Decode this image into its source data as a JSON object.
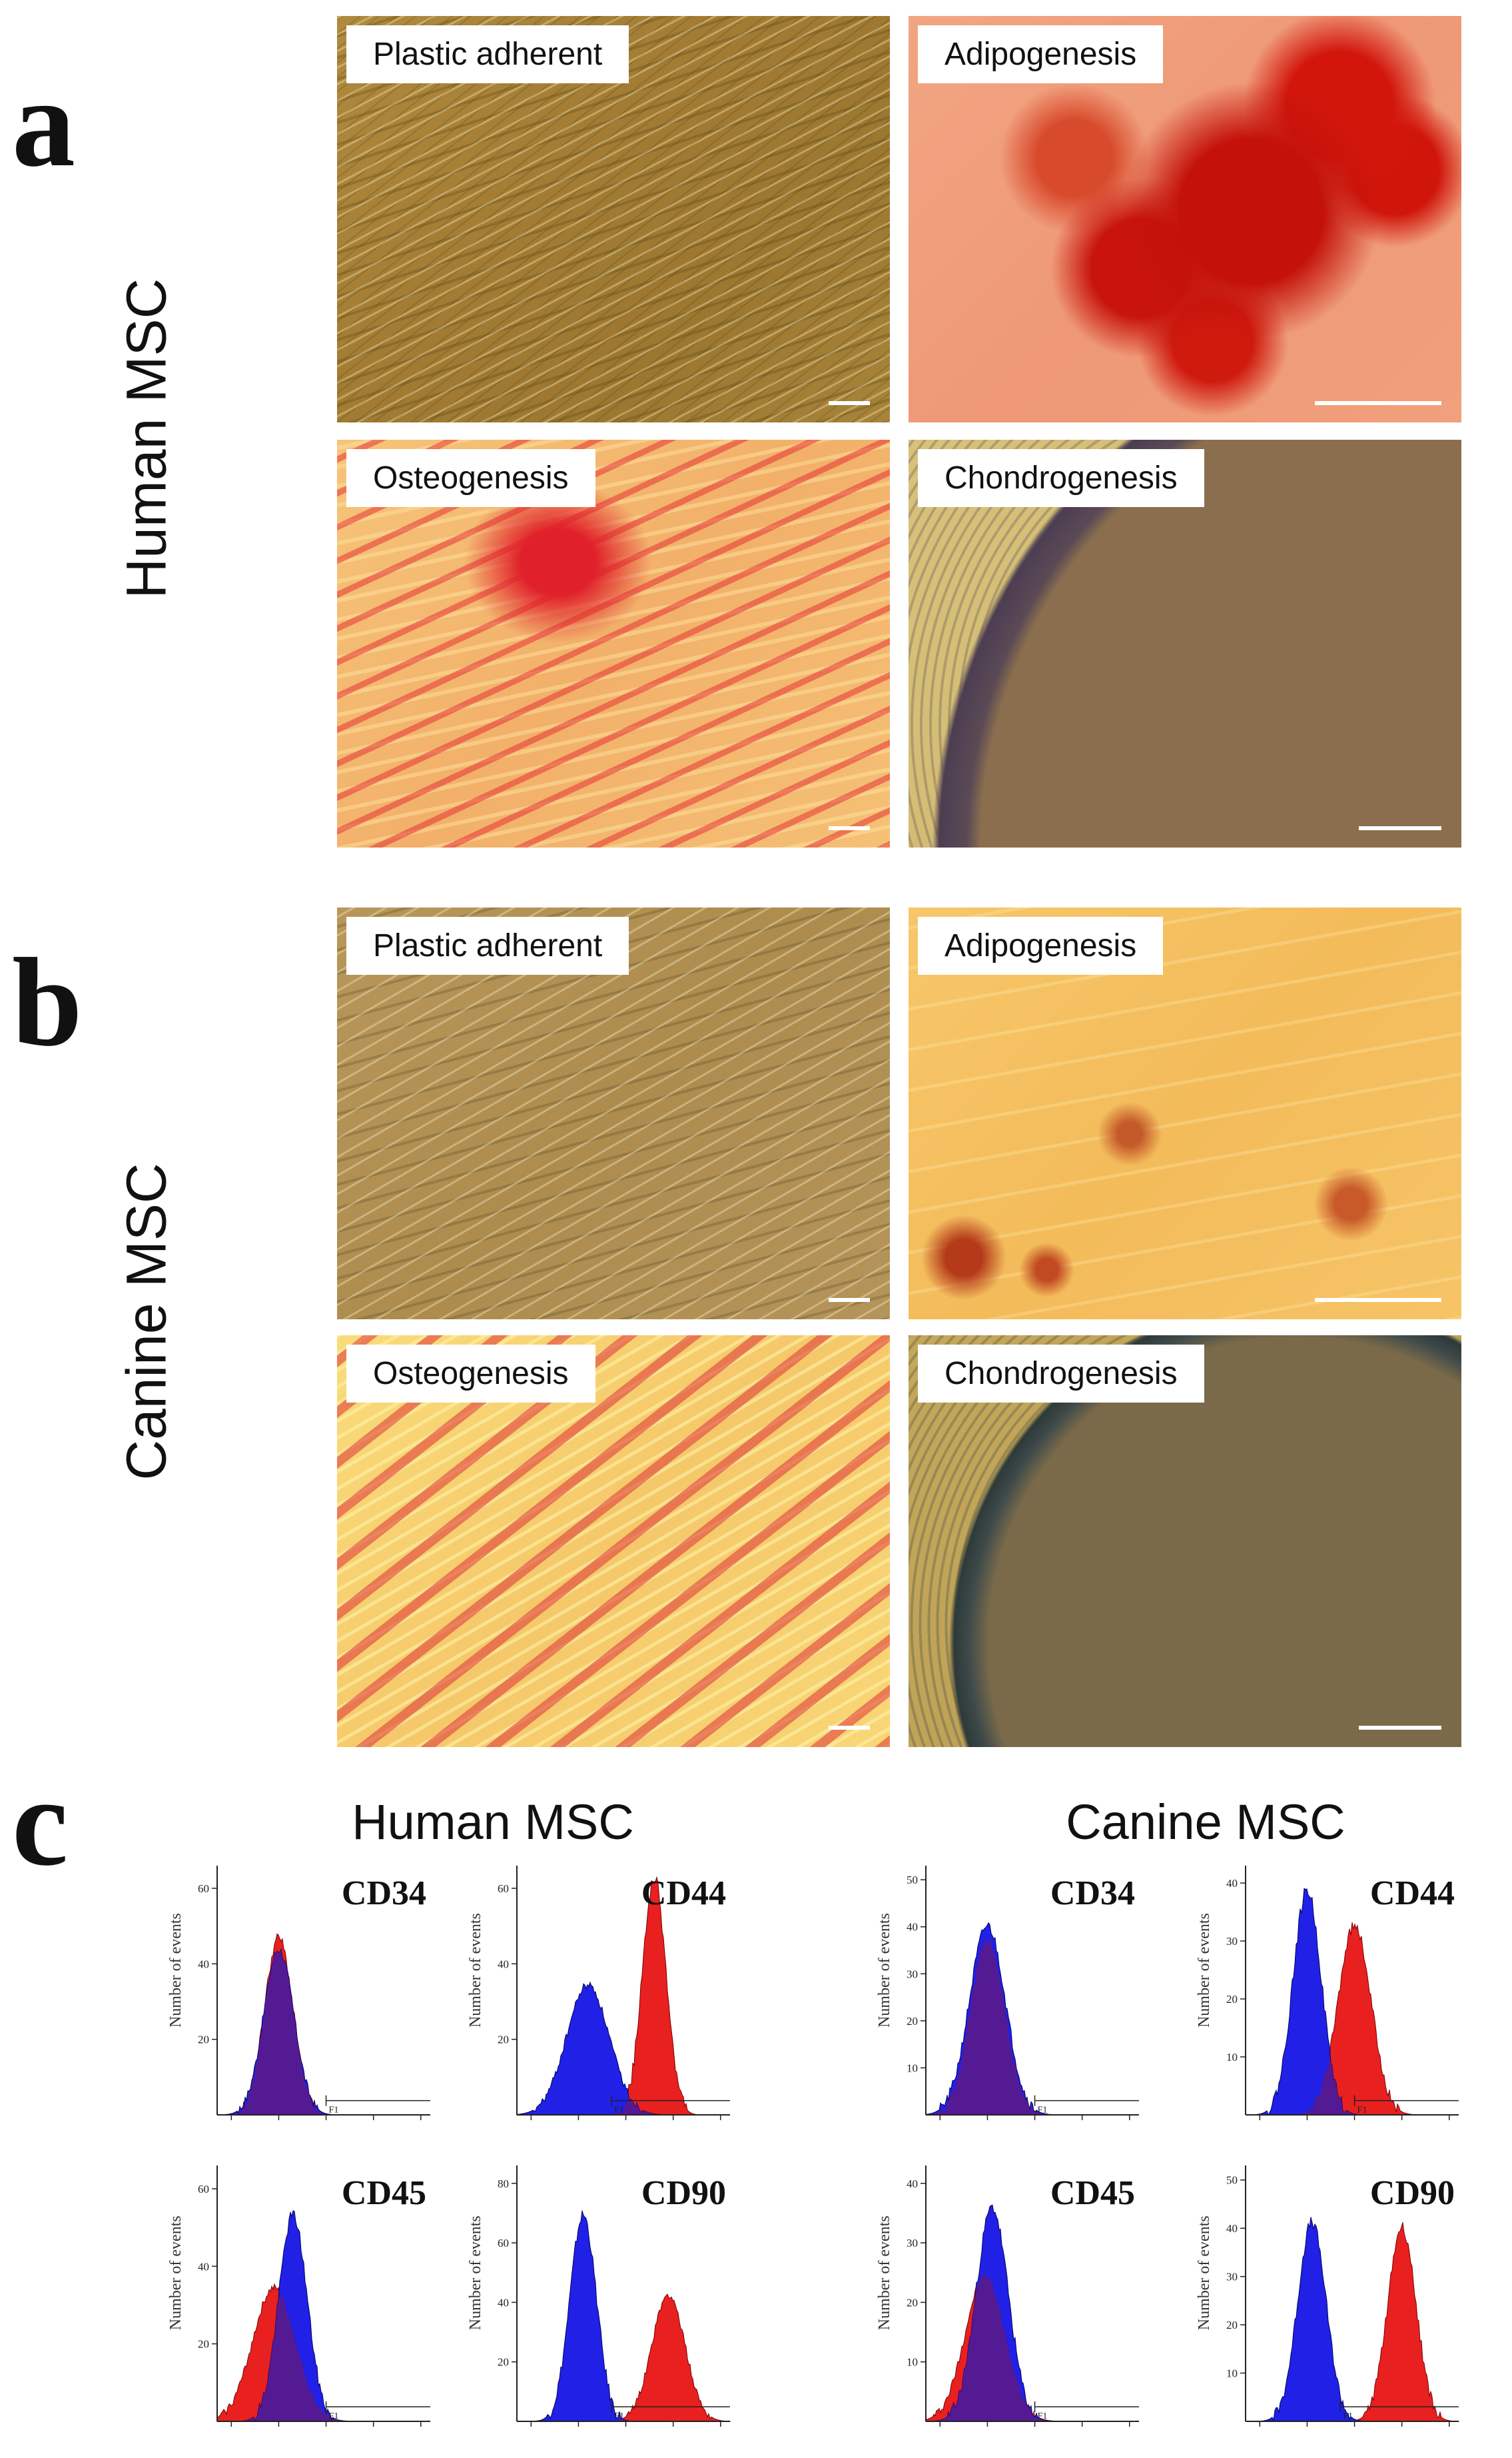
{
  "panels": {
    "a": {
      "letter": "a",
      "row_label": "Human MSC",
      "images": [
        {
          "label": "Plastic adherent",
          "texture": "t-plastic"
        },
        {
          "label": "Adipogenesis",
          "texture": "t-adipo-h"
        },
        {
          "label": "Osteogenesis",
          "texture": "t-osteo-h"
        },
        {
          "label": "Chondrogenesis",
          "texture": "t-chondro-h"
        }
      ]
    },
    "b": {
      "letter": "b",
      "row_label": "Canine MSC",
      "images": [
        {
          "label": "Plastic adherent",
          "texture": "t-plastic-c"
        },
        {
          "label": "Adipogenesis",
          "texture": "t-adipo-c"
        },
        {
          "label": "Osteogenesis",
          "texture": "t-osteo-c"
        },
        {
          "label": "Chondrogenesis",
          "texture": "t-chondro-c"
        }
      ]
    },
    "c": {
      "letter": "c",
      "groups": [
        {
          "title": "Human MSC"
        },
        {
          "title": "Canine MSC"
        }
      ]
    }
  },
  "chart_data": [
    {
      "type": "area",
      "marker": "CD34",
      "species": "Human MSC",
      "ylabel": "Number of events",
      "xscale": "log",
      "yticks": [
        "20",
        "40",
        "60"
      ],
      "gate": "F1",
      "control_peak_log": 1.0,
      "control_width": 0.32,
      "marker_peak_log": 1.0,
      "marker_width": 0.3,
      "control_height": 0.7,
      "marker_height": 0.75,
      "colors": {
        "control": "#2020e6",
        "marker": "#e82020",
        "overlap": "#5a1a8a"
      }
    },
    {
      "type": "area",
      "marker": "CD44",
      "species": "Human MSC",
      "ylabel": "Number of events",
      "xscale": "log",
      "yticks": [
        "20",
        "40",
        "60"
      ],
      "gate": "F1",
      "control_peak_log": 1.2,
      "control_width": 0.45,
      "marker_peak_log": 2.6,
      "marker_width": 0.25,
      "control_height": 0.55,
      "marker_height": 1.0,
      "colors": {
        "control": "#2020e6",
        "marker": "#e82020",
        "overlap": "#5a1a8a"
      }
    },
    {
      "type": "area",
      "marker": "CD45",
      "species": "Human MSC",
      "ylabel": "Number of events",
      "xscale": "log",
      "yticks": [
        "20",
        "40",
        "60"
      ],
      "gate": "F1",
      "control_peak_log": 1.3,
      "control_width": 0.3,
      "marker_peak_log": 0.9,
      "marker_width": 0.45,
      "control_height": 0.85,
      "marker_height": 0.55,
      "colors": {
        "control": "#2020e6",
        "marker": "#e82020",
        "overlap": "#5a1a8a"
      }
    },
    {
      "type": "area",
      "marker": "CD90",
      "species": "Human MSC",
      "ylabel": "Number of events",
      "xscale": "log",
      "yticks": [
        "20",
        "40",
        "60",
        "80"
      ],
      "gate": "F1",
      "control_peak_log": 1.1,
      "control_width": 0.28,
      "marker_peak_log": 2.9,
      "marker_width": 0.35,
      "control_height": 0.85,
      "marker_height": 0.52,
      "colors": {
        "control": "#2020e6",
        "marker": "#e82020",
        "overlap": "#5a1a8a"
      }
    },
    {
      "type": "area",
      "marker": "CD34",
      "species": "Canine MSC",
      "ylabel": "Number of events",
      "xscale": "log",
      "yticks": [
        "10",
        "20",
        "30",
        "40",
        "50"
      ],
      "gate": "F1",
      "control_peak_log": 1.0,
      "control_width": 0.38,
      "marker_peak_log": 1.0,
      "marker_width": 0.36,
      "control_height": 0.8,
      "marker_height": 0.74,
      "colors": {
        "control": "#2020e6",
        "marker": "#e82020",
        "overlap": "#5a1a8a"
      }
    },
    {
      "type": "area",
      "marker": "CD44",
      "species": "Canine MSC",
      "ylabel": "Number of events",
      "xscale": "log",
      "yticks": [
        "10",
        "20",
        "30",
        "40"
      ],
      "gate": "F1",
      "control_peak_log": 1.0,
      "control_width": 0.3,
      "marker_peak_log": 2.0,
      "marker_width": 0.35,
      "control_height": 0.95,
      "marker_height": 0.8,
      "colors": {
        "control": "#2020e6",
        "marker": "#e82020",
        "overlap": "#5a1a8a"
      }
    },
    {
      "type": "area",
      "marker": "CD45",
      "species": "Canine MSC",
      "ylabel": "Number of events",
      "xscale": "log",
      "yticks": [
        "10",
        "20",
        "30",
        "40"
      ],
      "gate": "F1",
      "control_peak_log": 1.1,
      "control_width": 0.34,
      "marker_peak_log": 0.95,
      "marker_width": 0.42,
      "control_height": 0.88,
      "marker_height": 0.6,
      "colors": {
        "control": "#2020e6",
        "marker": "#e82020",
        "overlap": "#5a1a8a"
      }
    },
    {
      "type": "area",
      "marker": "CD90",
      "species": "Canine MSC",
      "ylabel": "Number of events",
      "xscale": "log",
      "yticks": [
        "10",
        "20",
        "30",
        "40",
        "50"
      ],
      "gate": "F1",
      "control_peak_log": 1.1,
      "control_width": 0.3,
      "marker_peak_log": 3.0,
      "marker_width": 0.3,
      "control_height": 0.82,
      "marker_height": 0.8,
      "colors": {
        "control": "#2020e6",
        "marker": "#e82020",
        "overlap": "#5a1a8a"
      }
    }
  ]
}
